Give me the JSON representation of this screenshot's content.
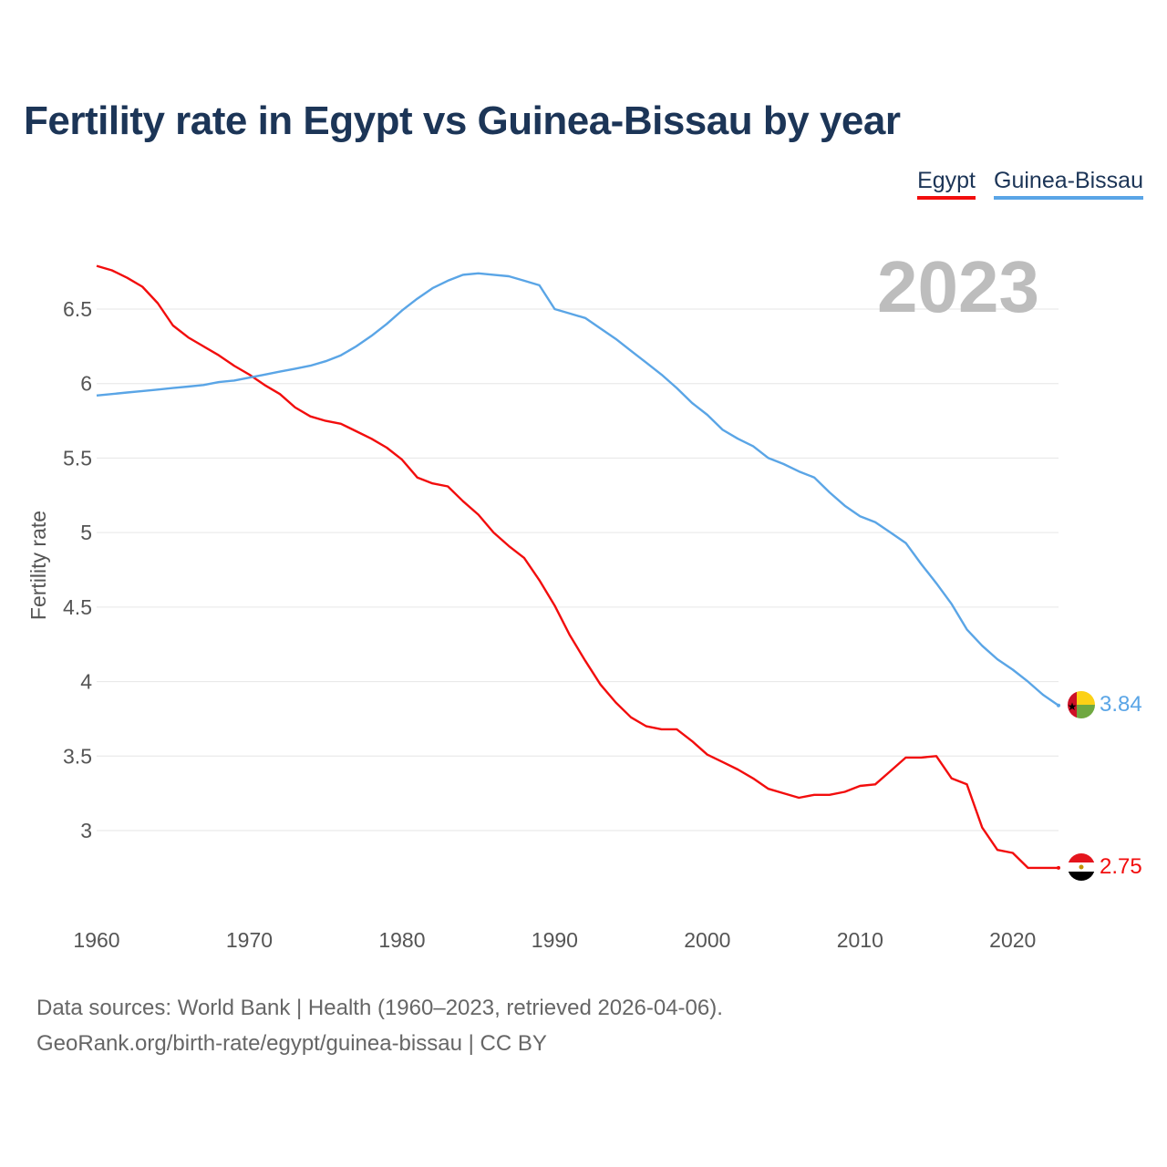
{
  "title": "Fertility rate in Egypt vs Guinea-Bissau by year",
  "legend": [
    {
      "label": "Egypt",
      "color": "#f20d0d"
    },
    {
      "label": "Guinea-Bissau",
      "color": "#5aa5e6"
    }
  ],
  "footer": {
    "line1": "Data sources: World Bank | Health (1960–2023, retrieved 2026-04-06).",
    "line2": "GeoRank.org/birth-rate/egypt/guinea-bissau | CC BY"
  },
  "chart_data": {
    "type": "line",
    "title": "Fertility rate in Egypt vs Guinea-Bissau by year",
    "xlabel": "",
    "ylabel": "Fertility rate",
    "year_display": "2023",
    "xlim": [
      1960,
      2023
    ],
    "ylim": [
      2.5,
      6.85
    ],
    "x_ticks": [
      1960,
      1970,
      1980,
      1990,
      2000,
      2010,
      2020
    ],
    "y_ticks": [
      3,
      3.5,
      4,
      4.5,
      5,
      5.5,
      6,
      6.5
    ],
    "y_tick_labels": [
      "3",
      "3.5",
      "4",
      "4.5",
      "5",
      "5.5",
      "6",
      "6.5"
    ],
    "grid": true,
    "legend_position": "top-right",
    "x": [
      1960,
      1961,
      1962,
      1963,
      1964,
      1965,
      1966,
      1967,
      1968,
      1969,
      1970,
      1971,
      1972,
      1973,
      1974,
      1975,
      1976,
      1977,
      1978,
      1979,
      1980,
      1981,
      1982,
      1983,
      1984,
      1985,
      1986,
      1987,
      1988,
      1989,
      1990,
      1991,
      1992,
      1993,
      1994,
      1995,
      1996,
      1997,
      1998,
      1999,
      2000,
      2001,
      2002,
      2003,
      2004,
      2005,
      2006,
      2007,
      2008,
      2009,
      2010,
      2011,
      2012,
      2013,
      2014,
      2015,
      2016,
      2017,
      2018,
      2019,
      2020,
      2021,
      2022,
      2023
    ],
    "series": [
      {
        "name": "Egypt",
        "color": "#f20d0d",
        "end_label": "2.75",
        "values": [
          6.79,
          6.76,
          6.71,
          6.65,
          6.54,
          6.39,
          6.31,
          6.25,
          6.19,
          6.12,
          6.06,
          5.99,
          5.93,
          5.84,
          5.78,
          5.75,
          5.73,
          5.68,
          5.63,
          5.57,
          5.49,
          5.37,
          5.33,
          5.31,
          5.21,
          5.12,
          5.0,
          4.91,
          4.83,
          4.68,
          4.51,
          4.31,
          4.14,
          3.98,
          3.86,
          3.76,
          3.7,
          3.68,
          3.68,
          3.6,
          3.51,
          3.46,
          3.41,
          3.35,
          3.28,
          3.25,
          3.22,
          3.24,
          3.24,
          3.26,
          3.3,
          3.31,
          3.4,
          3.49,
          3.49,
          3.5,
          3.35,
          3.31,
          3.02,
          2.87,
          2.85,
          2.75,
          2.75,
          2.75
        ]
      },
      {
        "name": "Guinea-Bissau",
        "color": "#5aa5e6",
        "end_label": "3.84",
        "values": [
          5.92,
          5.93,
          5.94,
          5.95,
          5.96,
          5.97,
          5.98,
          5.99,
          6.01,
          6.02,
          6.04,
          6.06,
          6.08,
          6.1,
          6.12,
          6.15,
          6.19,
          6.25,
          6.32,
          6.4,
          6.49,
          6.57,
          6.64,
          6.69,
          6.73,
          6.74,
          6.73,
          6.72,
          6.69,
          6.66,
          6.5,
          6.47,
          6.44,
          6.37,
          6.3,
          6.22,
          6.14,
          6.06,
          5.97,
          5.87,
          5.79,
          5.69,
          5.63,
          5.58,
          5.5,
          5.46,
          5.41,
          5.37,
          5.27,
          5.18,
          5.11,
          5.07,
          5.0,
          4.93,
          4.79,
          4.66,
          4.52,
          4.35,
          4.24,
          4.15,
          4.08,
          4.0,
          3.91,
          3.84
        ]
      }
    ]
  }
}
